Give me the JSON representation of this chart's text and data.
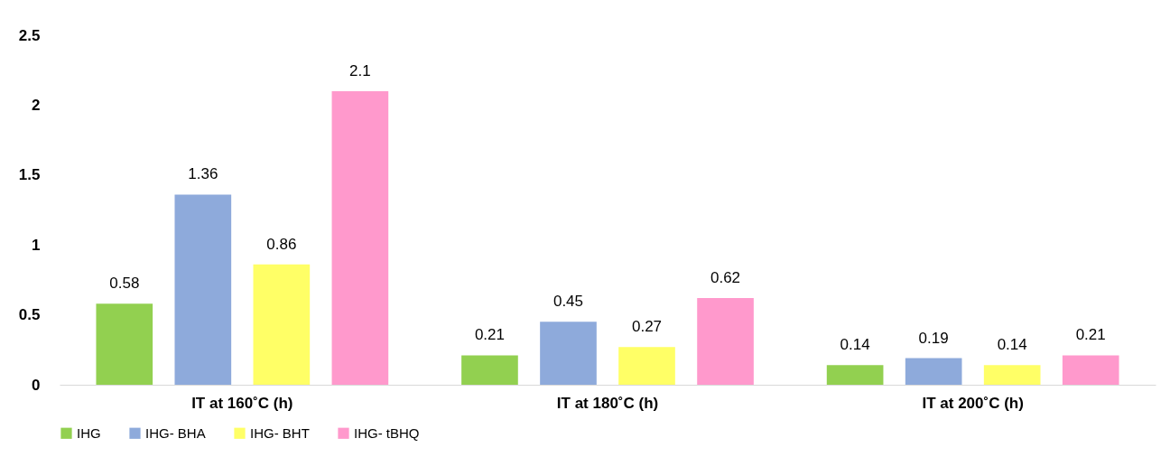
{
  "chart_data": {
    "type": "bar",
    "categories": [
      "IT at 160˚C  (h)",
      "IT at 180˚C  (h)",
      "IT at 200˚C  (h)"
    ],
    "series": [
      {
        "name": "IHG",
        "color": "#92d050",
        "values": [
          0.58,
          0.21,
          0.14
        ]
      },
      {
        "name": "IHG- BHA",
        "color": "#8eaadb",
        "values": [
          1.36,
          0.45,
          0.19
        ]
      },
      {
        "name": "IHG- BHT",
        "color": "#ffff66",
        "values": [
          0.86,
          0.27,
          0.14
        ]
      },
      {
        "name": "IHG- tBHQ",
        "color": "#ff99cc",
        "values": [
          2.1,
          0.62,
          0.21
        ]
      }
    ],
    "ylim": [
      0,
      2.5
    ],
    "yticks": [
      0,
      0.5,
      1,
      1.5,
      2,
      2.5
    ],
    "grid": false,
    "legend": "bottom",
    "data_labels": true
  }
}
